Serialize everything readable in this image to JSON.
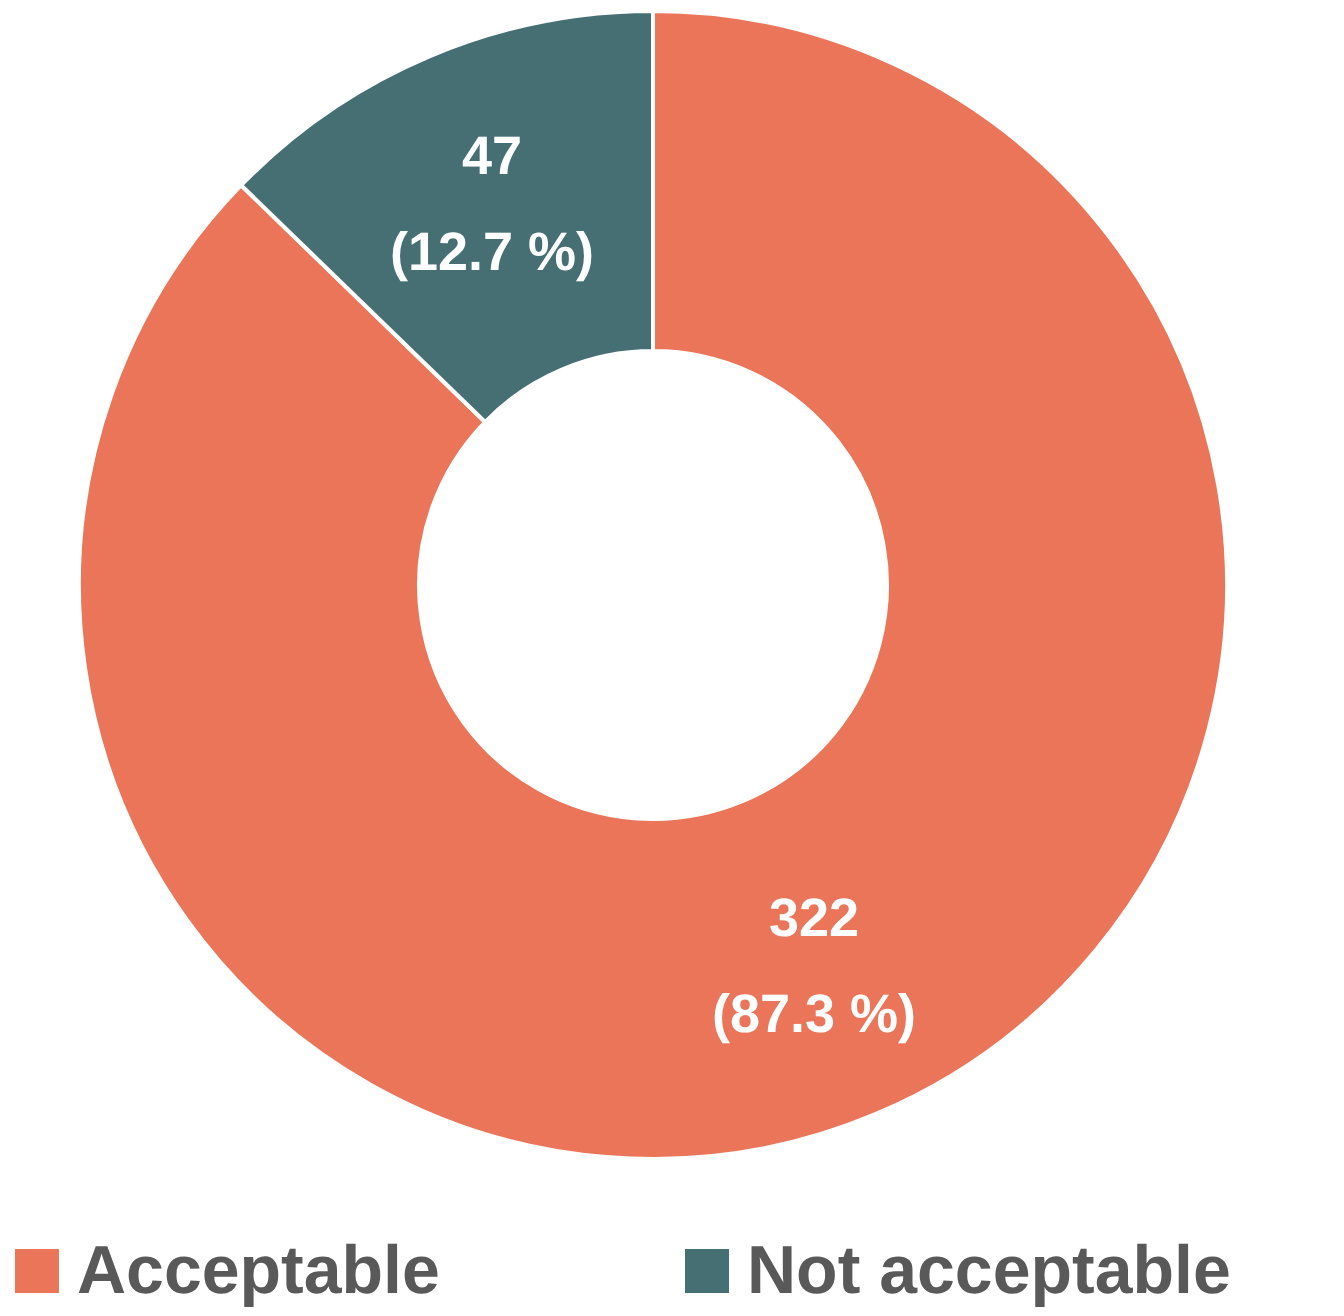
{
  "chart_data": {
    "type": "donut",
    "categories": [
      "Acceptable",
      "Not acceptable"
    ],
    "values": [
      322,
      47
    ],
    "colors": [
      "#eb7559",
      "#466f74"
    ],
    "value_labels": [
      "322\n(87.3 %)",
      "47\n(12.7 %)"
    ],
    "legend": "bottom"
  }
}
